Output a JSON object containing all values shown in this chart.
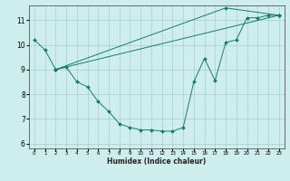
{
  "xlabel": "Humidex (Indice chaleur)",
  "bg_color": "#ceeeed",
  "grid_color": "#aacccc",
  "line_color": "#1a7a6a",
  "xlim": [
    -0.5,
    23.5
  ],
  "ylim": [
    5.8,
    11.6
  ],
  "yticks": [
    6,
    7,
    8,
    9,
    10,
    11
  ],
  "xticks": [
    0,
    1,
    2,
    3,
    4,
    5,
    6,
    7,
    8,
    9,
    10,
    11,
    12,
    13,
    14,
    15,
    16,
    17,
    18,
    19,
    20,
    21,
    22,
    23
  ],
  "series": [
    [
      0,
      10.2
    ],
    [
      1,
      9.8
    ],
    [
      2,
      9.0
    ],
    [
      3,
      9.1
    ],
    [
      4,
      8.5
    ],
    [
      5,
      8.3
    ],
    [
      6,
      7.7
    ],
    [
      7,
      7.3
    ],
    [
      8,
      6.8
    ],
    [
      9,
      6.65
    ],
    [
      10,
      6.55
    ],
    [
      11,
      6.55
    ],
    [
      12,
      6.5
    ],
    [
      13,
      6.5
    ],
    [
      14,
      6.65
    ],
    [
      15,
      8.5
    ],
    [
      16,
      9.45
    ],
    [
      17,
      8.55
    ],
    [
      18,
      10.1
    ],
    [
      19,
      10.2
    ],
    [
      20,
      11.1
    ],
    [
      21,
      11.1
    ],
    [
      22,
      11.2
    ],
    [
      23,
      11.2
    ]
  ],
  "line2": [
    [
      2,
      9.0
    ],
    [
      23,
      11.2
    ]
  ],
  "line3": [
    [
      2,
      9.0
    ],
    [
      18,
      11.5
    ],
    [
      23,
      11.2
    ]
  ]
}
